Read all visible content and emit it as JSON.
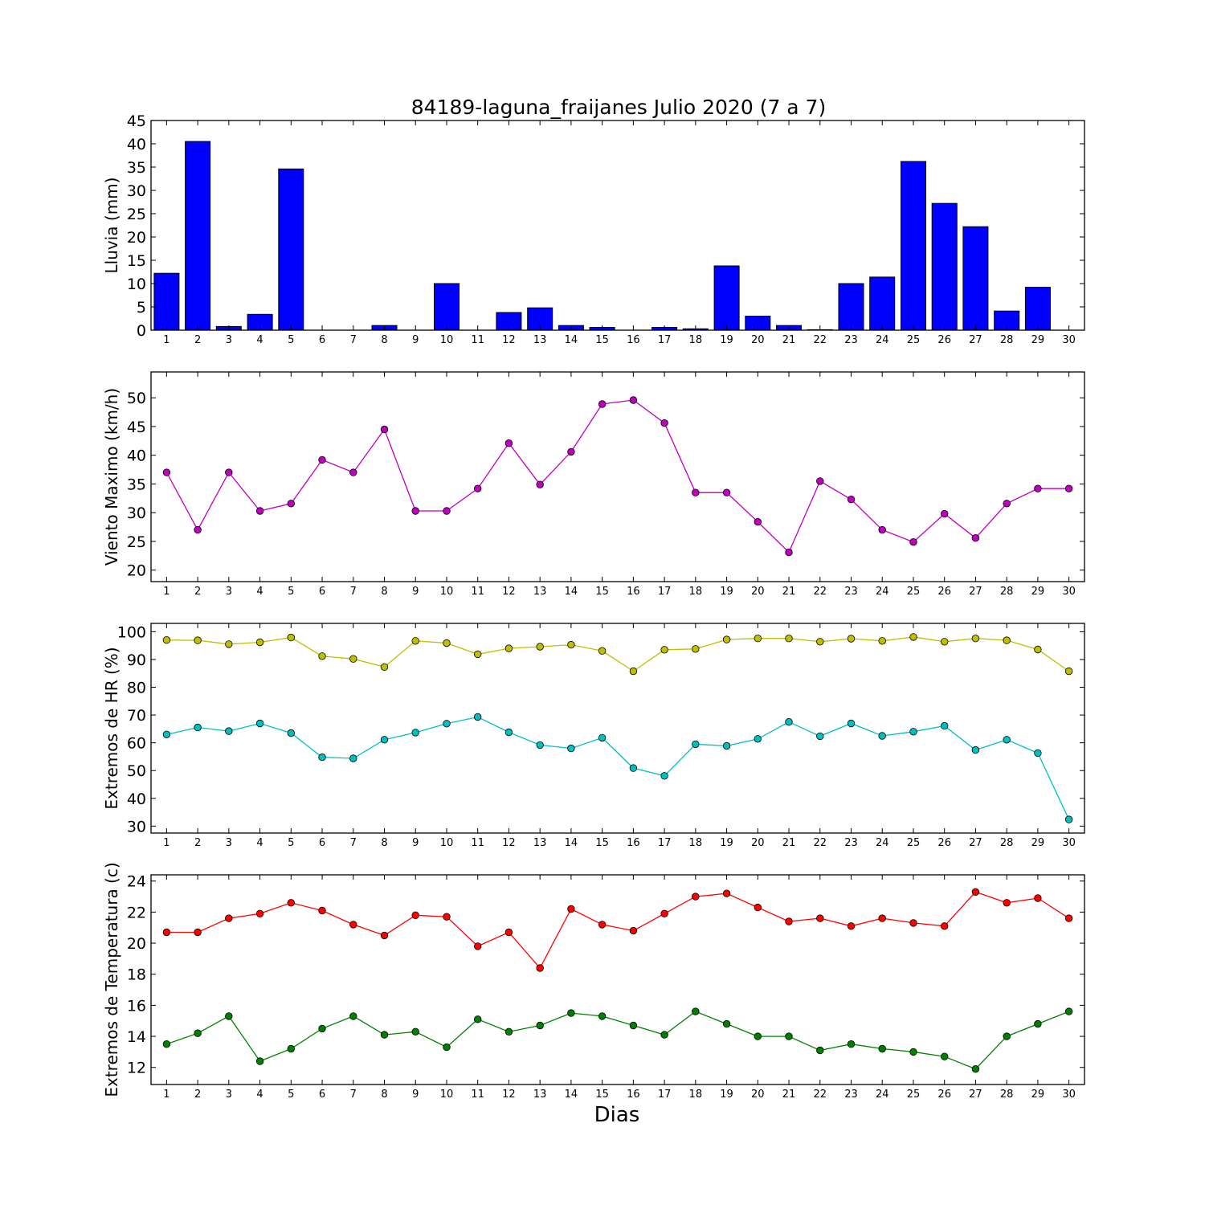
{
  "chart_data": [
    {
      "type": "bar",
      "title": "84189-laguna_fraijanes Julio 2020  (7 a 7)",
      "ylabel": "Lluvia (mm)",
      "xlabel": "",
      "ylim": [
        0,
        45
      ],
      "yticks": [
        0,
        5,
        10,
        15,
        20,
        25,
        30,
        35,
        40,
        45
      ],
      "x": [
        1,
        2,
        3,
        4,
        5,
        6,
        7,
        8,
        9,
        10,
        11,
        12,
        13,
        14,
        15,
        16,
        17,
        18,
        19,
        20,
        21,
        22,
        23,
        24,
        25,
        26,
        27,
        28,
        29,
        30
      ],
      "series": [
        {
          "color": "#0000ff",
          "values": [
            12.2,
            40.5,
            0.8,
            3.4,
            34.6,
            0,
            0,
            1.0,
            0,
            10.0,
            0,
            3.8,
            4.8,
            1.0,
            0.6,
            0,
            0.6,
            0.3,
            13.8,
            3.0,
            1.0,
            0.1,
            10.0,
            11.4,
            36.2,
            27.2,
            22.2,
            4.1,
            9.2,
            0
          ]
        }
      ]
    },
    {
      "type": "line",
      "ylabel": "Viento Maximo (km/h)",
      "ylim": [
        18,
        54.5
      ],
      "yticks": [
        20,
        25,
        30,
        35,
        40,
        45,
        50
      ],
      "x": [
        1,
        2,
        3,
        4,
        5,
        6,
        7,
        8,
        9,
        10,
        11,
        12,
        13,
        14,
        15,
        16,
        17,
        18,
        19,
        20,
        21,
        22,
        23,
        24,
        25,
        26,
        27,
        28,
        29,
        30
      ],
      "series": [
        {
          "color": "#bf00bf",
          "values": [
            37.0,
            27.0,
            37.0,
            30.3,
            31.6,
            39.2,
            37.0,
            44.5,
            30.3,
            30.3,
            34.2,
            42.1,
            34.9,
            40.6,
            48.9,
            49.6,
            45.6,
            33.5,
            33.5,
            28.4,
            23.1,
            35.5,
            32.3,
            27.0,
            24.9,
            29.8,
            25.6,
            31.6,
            34.2,
            34.2
          ]
        }
      ]
    },
    {
      "type": "line",
      "ylabel": "Extremos de HR (%)",
      "ylim": [
        27.5,
        103
      ],
      "yticks": [
        30,
        40,
        50,
        60,
        70,
        80,
        90,
        100
      ],
      "x": [
        1,
        2,
        3,
        4,
        5,
        6,
        7,
        8,
        9,
        10,
        11,
        12,
        13,
        14,
        15,
        16,
        17,
        18,
        19,
        20,
        21,
        22,
        23,
        24,
        25,
        26,
        27,
        28,
        29,
        30
      ],
      "series": [
        {
          "color": "#bfbf00",
          "values": [
            97.0,
            96.9,
            95.5,
            96.2,
            97.9,
            91.2,
            90.2,
            87.3,
            96.7,
            95.9,
            91.9,
            94.0,
            94.6,
            95.3,
            93.1,
            85.8,
            93.5,
            93.8,
            97.2,
            97.6,
            97.6,
            96.4,
            97.5,
            96.7,
            98.1,
            96.4,
            97.6,
            96.9,
            93.6,
            85.8
          ]
        },
        {
          "color": "#00bfbf",
          "values": [
            63.0,
            65.5,
            64.2,
            67.0,
            63.5,
            54.8,
            54.4,
            61.1,
            63.7,
            66.9,
            69.3,
            63.8,
            59.2,
            58.0,
            61.8,
            50.9,
            48.1,
            59.5,
            58.9,
            61.4,
            67.5,
            62.4,
            67.0,
            62.5,
            64.0,
            66.1,
            57.4,
            61.1,
            56.3,
            32.4
          ]
        }
      ]
    },
    {
      "type": "line",
      "ylabel": "Extremos de Temperatura (c)",
      "xlabel": "Dias",
      "ylim": [
        10.9,
        24.4
      ],
      "yticks": [
        12,
        14,
        16,
        18,
        20,
        22,
        24
      ],
      "x": [
        1,
        2,
        3,
        4,
        5,
        6,
        7,
        8,
        9,
        10,
        11,
        12,
        13,
        14,
        15,
        16,
        17,
        18,
        19,
        20,
        21,
        22,
        23,
        24,
        25,
        26,
        27,
        28,
        29,
        30
      ],
      "series": [
        {
          "color": "#ff0000",
          "values": [
            20.7,
            20.7,
            21.6,
            21.9,
            22.6,
            22.1,
            21.2,
            20.5,
            21.8,
            21.7,
            19.8,
            20.7,
            18.4,
            22.2,
            21.2,
            20.8,
            21.9,
            23.0,
            23.2,
            22.3,
            21.4,
            21.6,
            21.1,
            21.6,
            21.3,
            21.1,
            23.3,
            22.6,
            22.9,
            21.6
          ]
        },
        {
          "color": "#008000",
          "values": [
            13.5,
            14.2,
            15.3,
            12.4,
            13.2,
            14.5,
            15.3,
            14.1,
            14.3,
            13.3,
            15.1,
            14.3,
            14.7,
            15.5,
            15.3,
            14.7,
            14.1,
            15.6,
            14.8,
            14.0,
            14.0,
            13.1,
            13.5,
            13.2,
            13.0,
            12.7,
            11.9,
            14.0,
            14.8,
            15.6
          ]
        }
      ]
    }
  ]
}
